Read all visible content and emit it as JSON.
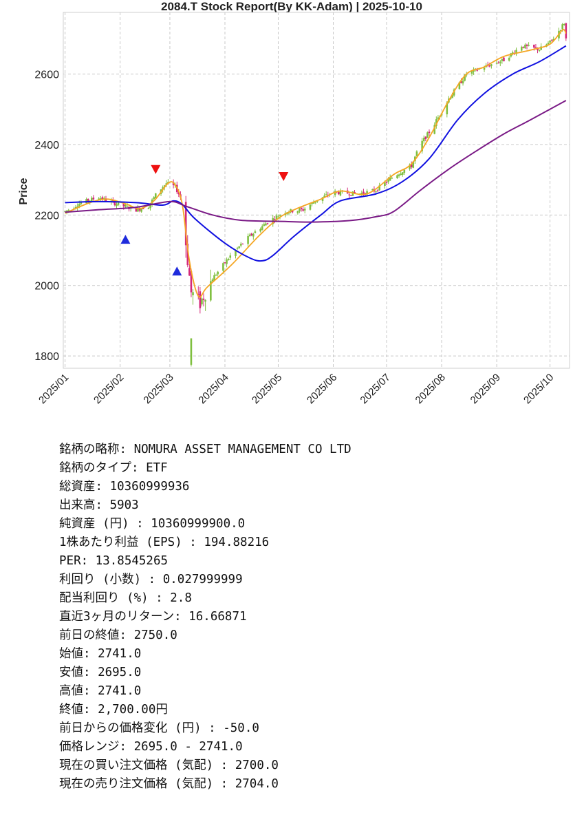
{
  "chart_data": {
    "type": "candlestick",
    "title": "2084.T   Stock Report(By KK-Adam) | 2025-10-10",
    "ylabel": "Price",
    "xlabel": "",
    "x_range": [
      "2024-12-31",
      "2025-10-12"
    ],
    "ylim": [
      1765,
      2775
    ],
    "y_ticks": [
      1800,
      2000,
      2200,
      2400,
      2600
    ],
    "x_ticks": [
      "2025/01",
      "2025/02",
      "2025/03",
      "2025/04",
      "2025/05",
      "2025/06",
      "2025/07",
      "2025/08",
      "2025/09",
      "2025/10"
    ],
    "x_tick_dates": [
      "2025-01-01",
      "2025-02-01",
      "2025-03-01",
      "2025-04-01",
      "2025-05-01",
      "2025-06-01",
      "2025-07-01",
      "2025-08-01",
      "2025-09-01",
      "2025-10-01"
    ],
    "grid": true,
    "colors": {
      "up": "#7fbf3f",
      "down": "#d4297a",
      "ma_short": "#f5a623",
      "ma_mid": "#1010e0",
      "ma_long": "#7a1a86",
      "buy": "#1f2bdc",
      "sell": "#ee1111"
    },
    "price_path": [
      [
        "2025-01-01",
        2210
      ],
      [
        "2025-01-10",
        2235
      ],
      [
        "2025-01-20",
        2250
      ],
      [
        "2025-02-01",
        2228
      ],
      [
        "2025-02-10",
        2215
      ],
      [
        "2025-02-17",
        2225
      ],
      [
        "2025-02-22",
        2265
      ],
      [
        "2025-02-27",
        2290
      ],
      [
        "2025-03-04",
        2280
      ],
      [
        "2025-03-07",
        2250
      ],
      [
        "2025-03-10",
        2120
      ],
      [
        "2025-03-13",
        1980
      ],
      [
        "2025-03-18",
        1950
      ],
      [
        "2025-03-25",
        2020
      ],
      [
        "2025-04-05",
        2090
      ],
      [
        "2025-04-15",
        2140
      ],
      [
        "2025-04-25",
        2180
      ],
      [
        "2025-05-05",
        2210
      ],
      [
        "2025-05-15",
        2215
      ],
      [
        "2025-05-22",
        2240
      ],
      [
        "2025-06-01",
        2265
      ],
      [
        "2025-06-15",
        2260
      ],
      [
        "2025-06-25",
        2270
      ],
      [
        "2025-07-05",
        2310
      ],
      [
        "2025-07-15",
        2340
      ],
      [
        "2025-07-20",
        2400
      ],
      [
        "2025-07-27",
        2450
      ],
      [
        "2025-08-05",
        2530
      ],
      [
        "2025-08-15",
        2600
      ],
      [
        "2025-08-25",
        2620
      ],
      [
        "2025-09-05",
        2640
      ],
      [
        "2025-09-15",
        2680
      ],
      [
        "2025-09-25",
        2670
      ],
      [
        "2025-10-01",
        2690
      ],
      [
        "2025-10-05",
        2715
      ],
      [
        "2025-10-09",
        2745
      ],
      [
        "2025-10-10",
        2700
      ]
    ],
    "series": [
      {
        "color_key": "ma_short",
        "points": [
          [
            "2025-01-01",
            2205
          ],
          [
            "2025-01-15",
            2235
          ],
          [
            "2025-01-25",
            2245
          ],
          [
            "2025-02-05",
            2230
          ],
          [
            "2025-02-12",
            2218
          ],
          [
            "2025-02-20",
            2240
          ],
          [
            "2025-02-28",
            2290
          ],
          [
            "2025-03-04",
            2285
          ],
          [
            "2025-03-08",
            2230
          ],
          [
            "2025-03-12",
            2070
          ],
          [
            "2025-03-17",
            1970
          ],
          [
            "2025-03-22",
            1995
          ],
          [
            "2025-04-05",
            2060
          ],
          [
            "2025-04-20",
            2140
          ],
          [
            "2025-05-01",
            2190
          ],
          [
            "2025-05-10",
            2215
          ],
          [
            "2025-05-25",
            2245
          ],
          [
            "2025-06-05",
            2268
          ],
          [
            "2025-06-20",
            2260
          ],
          [
            "2025-07-05",
            2315
          ],
          [
            "2025-07-15",
            2345
          ],
          [
            "2025-07-25",
            2420
          ],
          [
            "2025-08-05",
            2525
          ],
          [
            "2025-08-15",
            2600
          ],
          [
            "2025-08-25",
            2620
          ],
          [
            "2025-09-05",
            2650
          ],
          [
            "2025-09-20",
            2668
          ],
          [
            "2025-10-01",
            2685
          ],
          [
            "2025-10-08",
            2725
          ],
          [
            "2025-10-10",
            2715
          ]
        ]
      },
      {
        "color_key": "ma_mid",
        "points": [
          [
            "2025-01-01",
            2235
          ],
          [
            "2025-01-20",
            2238
          ],
          [
            "2025-02-10",
            2235
          ],
          [
            "2025-02-25",
            2228
          ],
          [
            "2025-03-03",
            2240
          ],
          [
            "2025-03-08",
            2230
          ],
          [
            "2025-03-15",
            2190
          ],
          [
            "2025-04-01",
            2120
          ],
          [
            "2025-04-15",
            2078
          ],
          [
            "2025-04-22",
            2070
          ],
          [
            "2025-04-28",
            2085
          ],
          [
            "2025-05-10",
            2140
          ],
          [
            "2025-05-25",
            2200
          ],
          [
            "2025-06-05",
            2240
          ],
          [
            "2025-06-25",
            2260
          ],
          [
            "2025-07-10",
            2295
          ],
          [
            "2025-07-25",
            2360
          ],
          [
            "2025-08-10",
            2470
          ],
          [
            "2025-08-25",
            2545
          ],
          [
            "2025-09-10",
            2600
          ],
          [
            "2025-09-25",
            2635
          ],
          [
            "2025-10-10",
            2680
          ]
        ]
      },
      {
        "color_key": "ma_long",
        "points": [
          [
            "2025-01-01",
            2208
          ],
          [
            "2025-01-20",
            2215
          ],
          [
            "2025-02-10",
            2222
          ],
          [
            "2025-03-01",
            2238
          ],
          [
            "2025-03-10",
            2225
          ],
          [
            "2025-03-25",
            2200
          ],
          [
            "2025-04-10",
            2185
          ],
          [
            "2025-05-01",
            2182
          ],
          [
            "2025-05-20",
            2180
          ],
          [
            "2025-06-10",
            2184
          ],
          [
            "2025-06-25",
            2195
          ],
          [
            "2025-07-05",
            2210
          ],
          [
            "2025-07-20",
            2270
          ],
          [
            "2025-08-05",
            2330
          ],
          [
            "2025-08-20",
            2380
          ],
          [
            "2025-09-05",
            2430
          ],
          [
            "2025-09-20",
            2470
          ],
          [
            "2025-10-10",
            2525
          ]
        ]
      }
    ],
    "signals": [
      {
        "type": "buy",
        "date": "2025-02-04",
        "price": 2130
      },
      {
        "type": "sell",
        "date": "2025-02-21",
        "price": 2330
      },
      {
        "type": "buy",
        "date": "2025-03-05",
        "price": 2040
      },
      {
        "type": "sell",
        "date": "2025-05-04",
        "price": 2310
      }
    ]
  },
  "info_lines": [
    "銘柄の略称: NOMURA ASSET MANAGEMENT CO LTD",
    "銘柄のタイプ: ETF",
    "総資産: 10360999936",
    "出来高: 5903",
    "純資産 (円) : 10360999900.0",
    "1株あたり利益 (EPS) : 194.88216",
    "PER: 13.8545265",
    "利回り (小数) : 0.027999999",
    "配当利回り (%) : 2.8",
    "直近3ヶ月のリターン: 16.66871",
    "前日の終値: 2750.0",
    "始値: 2741.0",
    "安値: 2695.0",
    "高値: 2741.0",
    "終値: 2,700.00円",
    "前日からの価格変化 (円) : -50.0",
    "価格レンジ: 2695.0 - 2741.0",
    "現在の買い注文価格 (気配) : 2700.0",
    "現在の売り注文価格 (気配) : 2704.0"
  ]
}
